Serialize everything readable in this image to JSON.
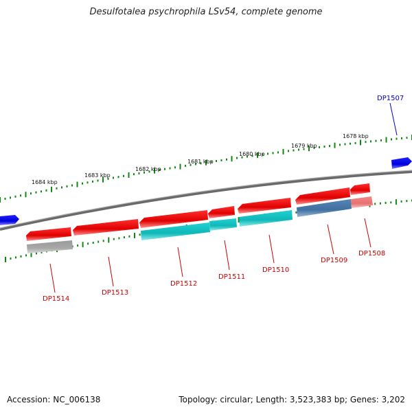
{
  "title": "Desulfotalea psychrophila LSv54, complete genome",
  "footer": {
    "accession": "Accession: NC_006138",
    "summary": "Topology: circular; Length: 3,523,383 bp; Genes: 3,202"
  },
  "scale_labels": [
    "1684 kbp",
    "1683 kbp",
    "1682 kbp",
    "1681 kbp",
    "1680 kbp",
    "1679 kbp",
    "1678 kbp"
  ],
  "gene_labels": [
    {
      "name": "DP1507",
      "color": "#0000cc"
    },
    {
      "name": "DP1508",
      "color": "#cc0000"
    },
    {
      "name": "DP1509",
      "color": "#cc0000"
    },
    {
      "name": "DP1510",
      "color": "#cc0000"
    },
    {
      "name": "DP1511",
      "color": "#cc0000"
    },
    {
      "name": "DP1512",
      "color": "#cc0000"
    },
    {
      "name": "DP1513",
      "color": "#cc0000"
    },
    {
      "name": "DP1514",
      "color": "#cc0000"
    }
  ],
  "colors": {
    "backbone": "#888888",
    "tick": "#118811",
    "forward_gene": "#ee0000",
    "reverse_gene": "#0000ee",
    "annotation_cyan": "#11c8c8",
    "annotation_blue": "#4a7fb0",
    "annotation_pink": "#ee8080",
    "annotation_gray": "#aaaaaa"
  }
}
